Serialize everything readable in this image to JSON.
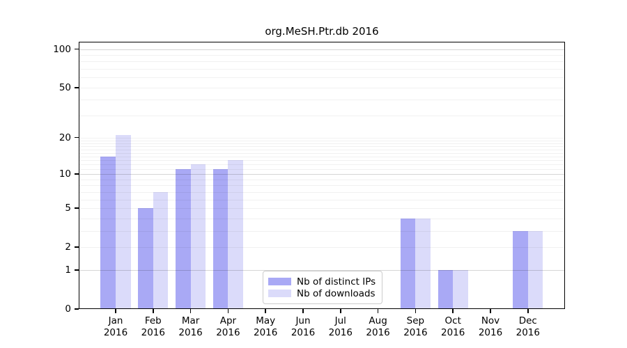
{
  "chart_data": {
    "type": "bar",
    "title": "org.MeSH.Ptr.db 2016",
    "categories": [
      "Jan",
      "Feb",
      "Mar",
      "Apr",
      "May",
      "Jun",
      "Jul",
      "Aug",
      "Sep",
      "Oct",
      "Nov",
      "Dec"
    ],
    "x_tick_year": "2016",
    "series": [
      {
        "name": "Nb of distinct IPs",
        "color": "#a9a9f5",
        "values": [
          14,
          5,
          11,
          11,
          0,
          0,
          0,
          0,
          4,
          1,
          0,
          3
        ]
      },
      {
        "name": "Nb of downloads",
        "color": "#dbdbfa",
        "values": [
          21,
          7,
          12,
          13,
          0,
          0,
          0,
          0,
          4,
          1,
          0,
          3
        ]
      }
    ],
    "yscale": "log1p",
    "ylim": [
      0,
      100
    ],
    "yticks": [
      "0",
      "1",
      "2",
      "5",
      "10",
      "20",
      "50",
      "100"
    ],
    "ytick_values": [
      0,
      1,
      2,
      5,
      10,
      20,
      50,
      100
    ],
    "major_gridlines": [
      1,
      10,
      100
    ],
    "minor_gridlines": [
      2,
      3,
      4,
      5,
      6,
      7,
      8,
      9,
      11,
      12,
      13,
      14,
      15,
      16,
      17,
      18,
      19,
      20,
      30,
      40,
      50,
      60,
      70,
      80,
      90
    ],
    "grid_on": true,
    "legend_position": "lower-center-right",
    "background_color": "#ffffff",
    "spine_color": "#000000"
  }
}
